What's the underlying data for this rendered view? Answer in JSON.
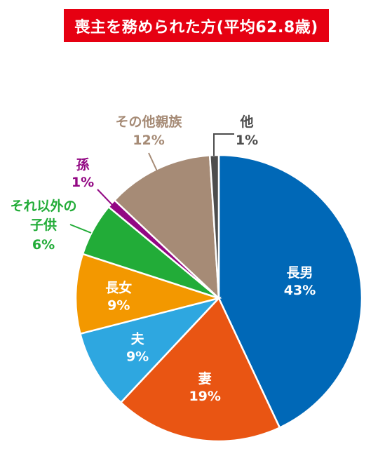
{
  "chart_data": {
    "type": "pie",
    "title": "喪主を務められた方(平均62.8歳)",
    "slices": [
      {
        "label": "長男",
        "value": 43,
        "display": "43%",
        "color": "#0068b7",
        "text_color": "#ffffff"
      },
      {
        "label": "妻",
        "value": 19,
        "display": "19%",
        "color": "#e95513",
        "text_color": "#ffffff"
      },
      {
        "label": "夫",
        "value": 9,
        "display": "9%",
        "color": "#2ea7e0",
        "text_color": "#ffffff"
      },
      {
        "label": "長女",
        "value": 9,
        "display": "9%",
        "color": "#f39800",
        "text_color": "#ffffff"
      },
      {
        "label": "それ以外の子供",
        "value": 6,
        "display": "6%",
        "color": "#22ac38",
        "text_color": "#22ac38"
      },
      {
        "label": "孫",
        "value": 1,
        "display": "1%",
        "color": "#920783",
        "text_color": "#920783"
      },
      {
        "label": "その他親族",
        "value": 12,
        "display": "12%",
        "color": "#a68b76",
        "text_color": "#a68b76"
      },
      {
        "label": "他",
        "value": 1,
        "display": "1%",
        "color": "#4d4d4d",
        "text_color": "#4d4d4d"
      }
    ]
  }
}
